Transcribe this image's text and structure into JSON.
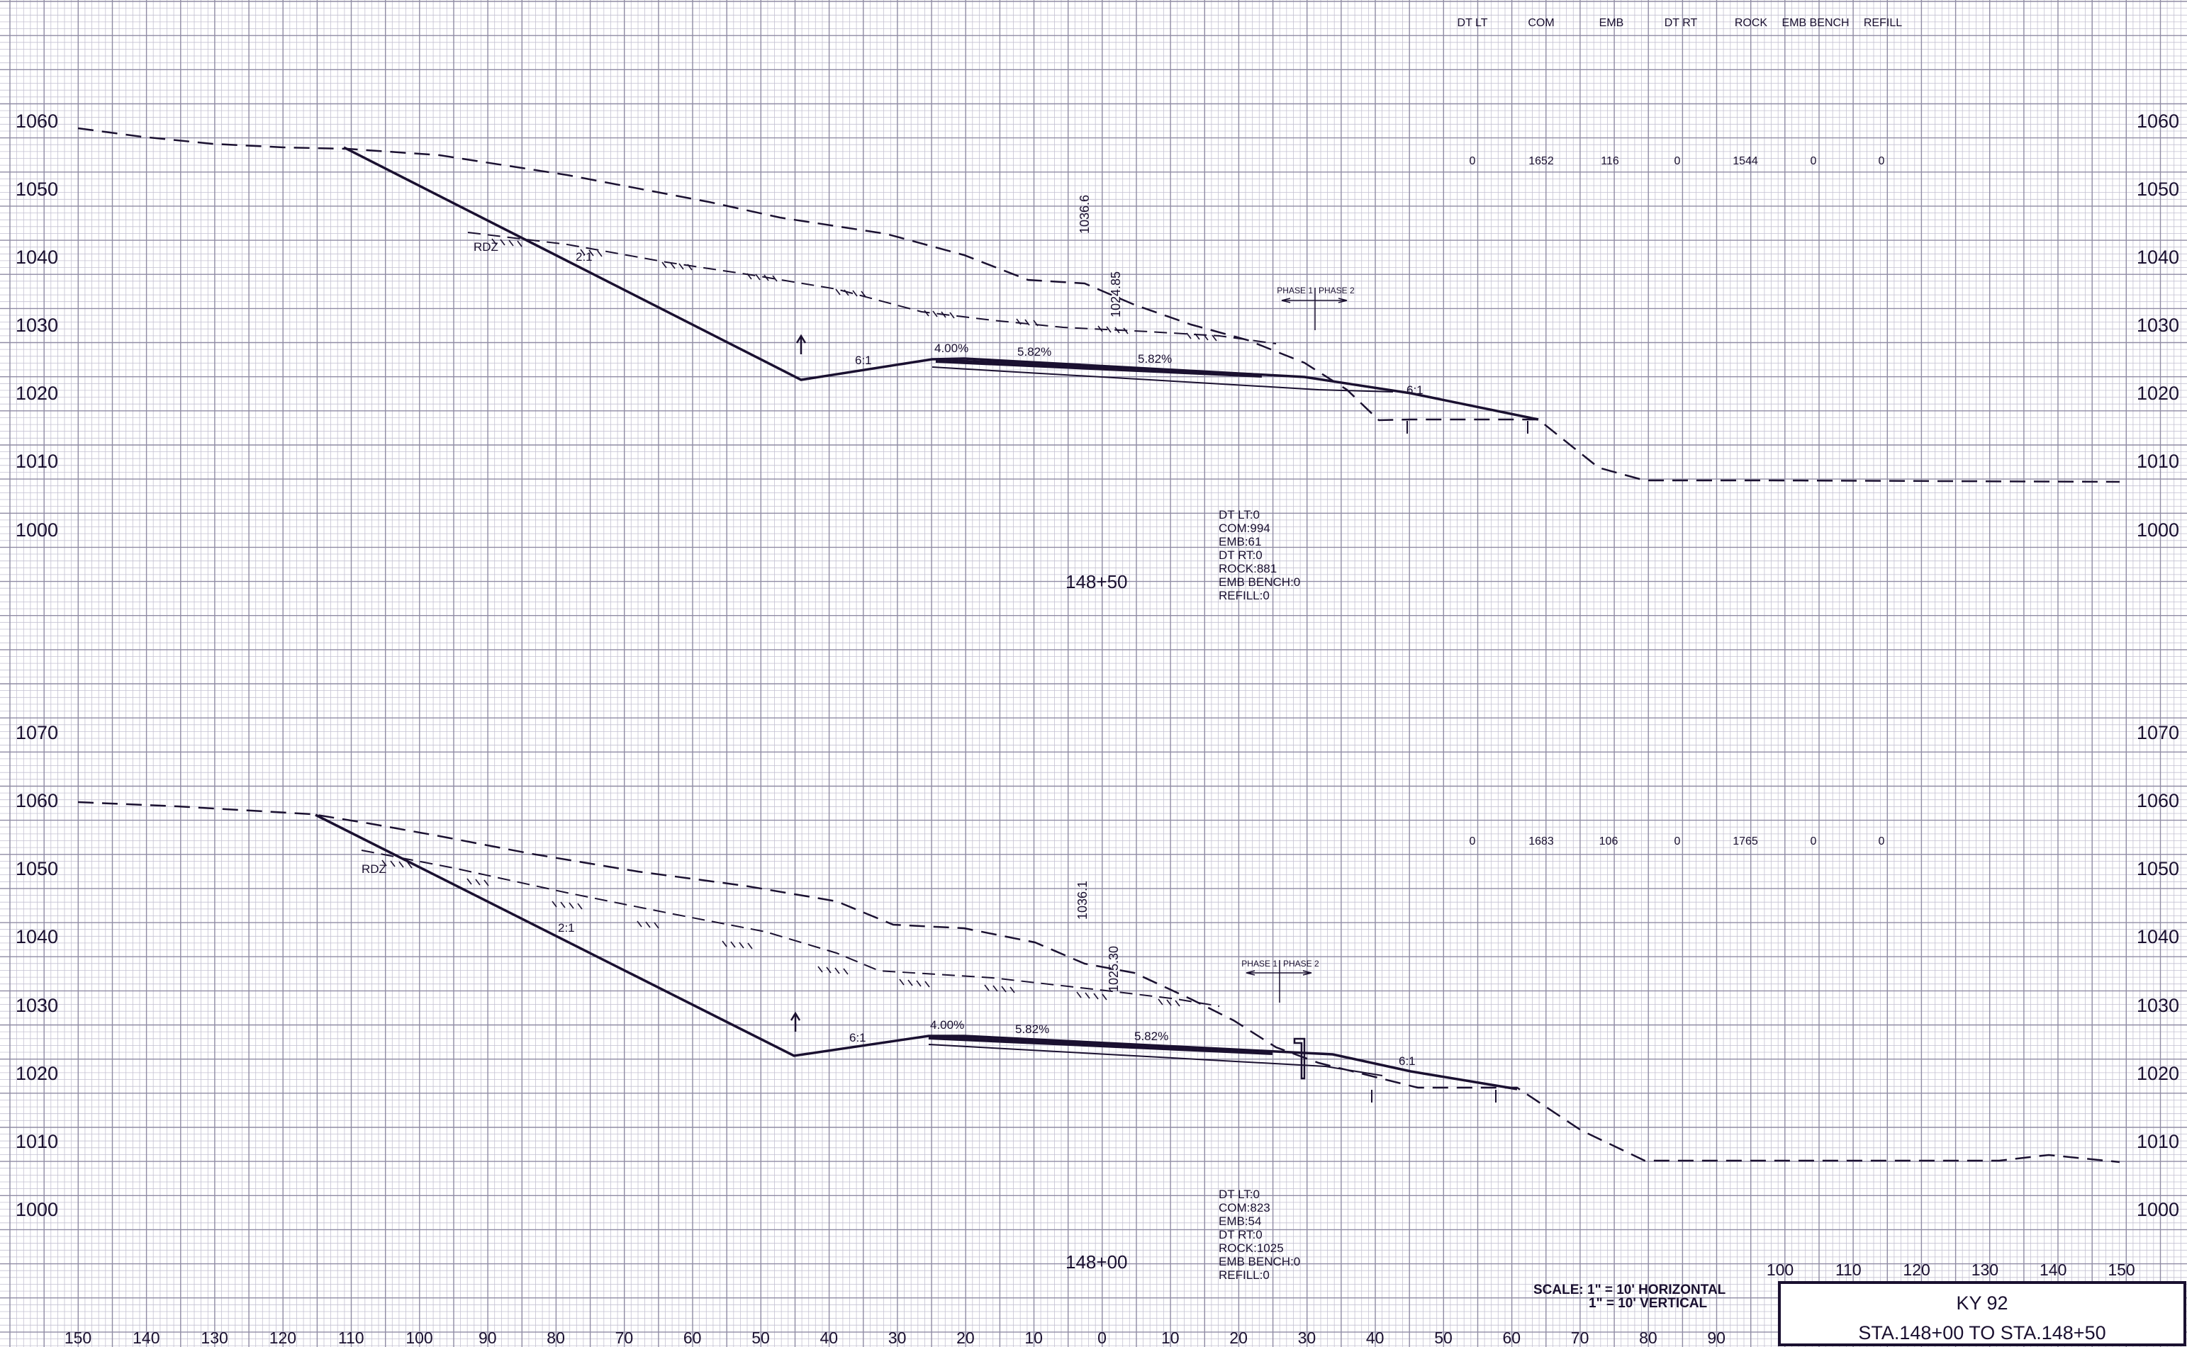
{
  "header": {
    "columns": [
      "DT LT",
      "COM",
      "EMB",
      "DT RT",
      "ROCK",
      "EMB BENCH",
      "REFILL"
    ]
  },
  "sections": [
    {
      "station": "148+50",
      "elevations": [
        "1060",
        "1050",
        "1040",
        "1030",
        "1020",
        "1010",
        "1000"
      ],
      "volumes": [
        "0",
        "1652",
        "116",
        "0",
        "1544",
        "0",
        "0"
      ],
      "slopes": {
        "left_back": "2:1",
        "left_fore": "6:1",
        "right": "6:1"
      },
      "grades": [
        "4.00%",
        "5.82%",
        "5.82%"
      ],
      "rdz": "RDZ",
      "centerline_ground": "1036.6",
      "profile_grade": "1024.85",
      "phase": {
        "left": "PHASE 1",
        "right": "PHASE 2"
      },
      "areas": [
        "DT LT:0",
        "COM:994",
        "EMB:61",
        "DT RT:0",
        "ROCK:881",
        "EMB BENCH:0",
        "REFILL:0"
      ]
    },
    {
      "station": "148+00",
      "elevations": [
        "1070",
        "1060",
        "1050",
        "1040",
        "1030",
        "1020",
        "1010",
        "1000"
      ],
      "volumes": [
        "0",
        "1683",
        "106",
        "0",
        "1765",
        "0",
        "0"
      ],
      "slopes": {
        "left_back": "2:1",
        "left_fore": "6:1",
        "right": "6:1"
      },
      "grades": [
        "4.00%",
        "5.82%",
        "5.82%"
      ],
      "rdz": "RDZ",
      "centerline_ground": "1036.1",
      "profile_grade": "1025.30",
      "phase": {
        "left": "PHASE 1",
        "right": "PHASE 2"
      },
      "areas": [
        "DT LT:0",
        "COM:823",
        "EMB:54",
        "DT RT:0",
        "ROCK:1025",
        "EMB BENCH:0",
        "REFILL:0"
      ]
    }
  ],
  "offsets_bottom": [
    "150",
    "140",
    "130",
    "120",
    "110",
    "100",
    "90",
    "80",
    "70",
    "60",
    "50",
    "40",
    "30",
    "20",
    "10",
    "0",
    "10",
    "20",
    "30",
    "40",
    "50",
    "60",
    "70",
    "80",
    "90"
  ],
  "offsets_right": [
    "100",
    "110",
    "120",
    "130",
    "140",
    "150"
  ],
  "scale": {
    "horizontal": "SCALE: 1\" = 10' HORIZONTAL",
    "vertical": "1\" = 10' VERTICAL"
  },
  "title_block": {
    "route": "KY 92",
    "range": "STA.148+00 TO STA.148+50"
  },
  "colors": {
    "ink": "#1a1030",
    "grid_minor": "#c4c1d2",
    "grid_major": "#8f8ba4",
    "paper": "#ffffff"
  }
}
